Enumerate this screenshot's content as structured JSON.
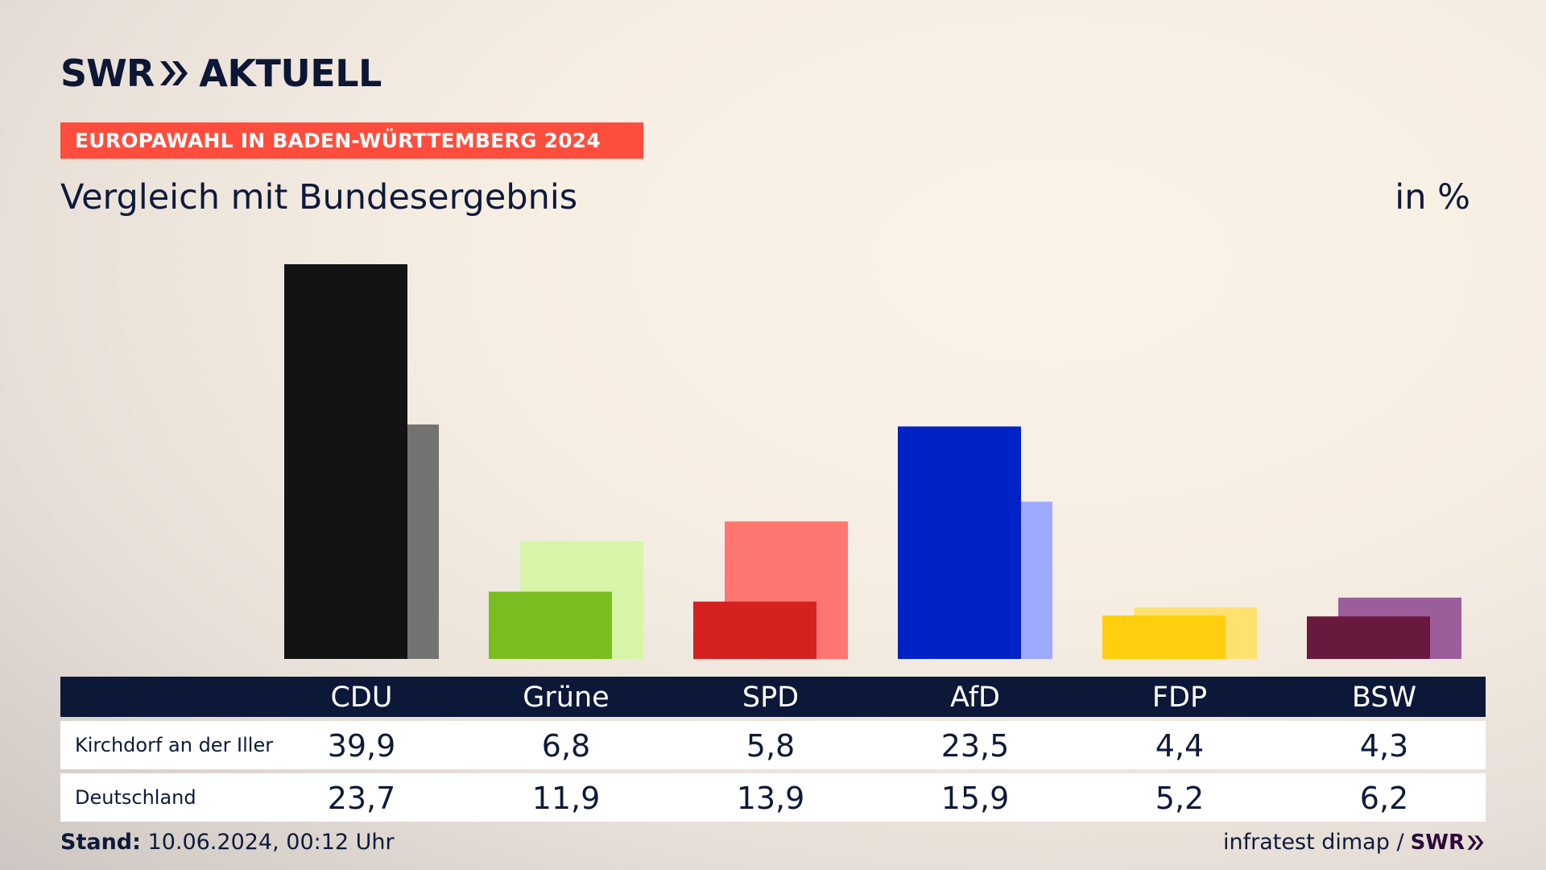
{
  "header": {
    "logo_text": "SWR",
    "brand": "AKTUELL",
    "ribbon": "EUROPAWAHL IN BADEN-WÜRTTEMBERG 2024",
    "subtitle": "Vergleich mit Bundesergebnis",
    "unit": "in %"
  },
  "chart_data": {
    "type": "bar",
    "title": "Vergleich mit Bundesergebnis",
    "unit": "in %",
    "categories": [
      "CDU",
      "Grüne",
      "SPD",
      "AfD",
      "FDP",
      "BSW"
    ],
    "series": [
      {
        "name": "Kirchdorf an der Iller",
        "values": [
          39.9,
          6.8,
          5.8,
          23.5,
          4.4,
          4.3
        ]
      },
      {
        "name": "Deutschland",
        "values": [
          23.7,
          11.9,
          13.9,
          15.9,
          5.2,
          6.2
        ]
      }
    ],
    "colors": {
      "primary": [
        "#131313",
        "#79bd1f",
        "#d62121",
        "#0022c7",
        "#ffcf0e",
        "#6a193e"
      ],
      "secondary": [
        "#757371",
        "#d6f5a8",
        "#ff7670",
        "#9eaafe",
        "#ffe170",
        "#9c5e9b"
      ]
    },
    "ylim": [
      0,
      40
    ]
  },
  "table": {
    "row_labels": [
      "Kirchdorf an der Iller",
      "Deutschland"
    ],
    "values_text": [
      [
        "39,9",
        "6,8",
        "5,8",
        "23,5",
        "4,4",
        "4,3"
      ],
      [
        "23,7",
        "11,9",
        "13,9",
        "15,9",
        "5,2",
        "6,2"
      ]
    ]
  },
  "footer": {
    "stand_label": "Stand:",
    "stand_value": "10.06.2024, 00:12 Uhr",
    "source": "infratest dimap /",
    "source_logo": "SWR"
  }
}
